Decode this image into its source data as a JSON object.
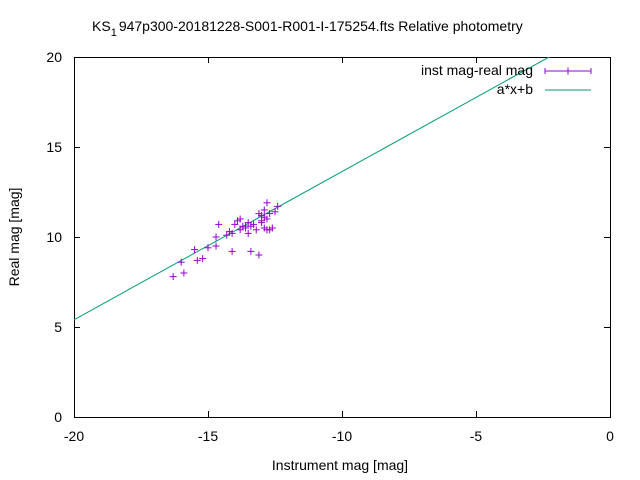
{
  "chart_data": {
    "type": "scatter",
    "title": {
      "prefix": "KS",
      "subscript": "1",
      "suffix": "947p300-20181228-S001-R001-I-175254.fts Relative photometry"
    },
    "xlabel": "Instrument mag [mag]",
    "ylabel": "Real mag [mag]",
    "xlim": [
      -20,
      0
    ],
    "ylim": [
      0,
      20
    ],
    "x_ticks": [
      -20,
      -15,
      -10,
      -5,
      0
    ],
    "x_tick_labels": [
      "-20",
      "-15",
      "-10",
      "-5",
      "0"
    ],
    "y_ticks": [
      0,
      5,
      10,
      15,
      20
    ],
    "y_tick_labels": [
      "0",
      "5",
      "10",
      "15",
      "20"
    ],
    "grid": false,
    "legend_position": "top-right",
    "series": [
      {
        "name": "inst mag-real mag",
        "kind": "points",
        "marker": "plus",
        "color": "#9400d3",
        "points": [
          [
            -16.3,
            7.8
          ],
          [
            -16.0,
            8.6
          ],
          [
            -15.9,
            8.0
          ],
          [
            -15.5,
            9.3
          ],
          [
            -15.4,
            8.7
          ],
          [
            -15.2,
            8.8
          ],
          [
            -15.0,
            9.4
          ],
          [
            -14.7,
            9.5
          ],
          [
            -14.7,
            10.0
          ],
          [
            -14.6,
            10.7
          ],
          [
            -14.3,
            10.1
          ],
          [
            -14.2,
            10.3
          ],
          [
            -14.1,
            9.2
          ],
          [
            -14.1,
            10.2
          ],
          [
            -14.0,
            10.7
          ],
          [
            -13.9,
            10.9
          ],
          [
            -13.8,
            10.4
          ],
          [
            -13.8,
            11.0
          ],
          [
            -13.7,
            10.6
          ],
          [
            -13.6,
            10.5
          ],
          [
            -13.5,
            10.8
          ],
          [
            -13.5,
            10.2
          ],
          [
            -13.4,
            10.6
          ],
          [
            -13.4,
            9.2
          ],
          [
            -13.3,
            10.7
          ],
          [
            -13.2,
            10.4
          ],
          [
            -13.1,
            11.3
          ],
          [
            -13.1,
            9.0
          ],
          [
            -13.0,
            10.9
          ],
          [
            -13.0,
            11.2
          ],
          [
            -12.9,
            10.5
          ],
          [
            -12.9,
            11.5
          ],
          [
            -12.8,
            11.9
          ],
          [
            -12.8,
            10.4
          ],
          [
            -12.8,
            11.0
          ],
          [
            -12.7,
            10.4
          ],
          [
            -12.7,
            11.3
          ],
          [
            -12.6,
            10.5
          ],
          [
            -12.5,
            11.4
          ],
          [
            -12.4,
            11.7
          ],
          [
            -12.9,
            11.1
          ],
          [
            -13.0,
            10.8
          ],
          [
            -13.6,
            10.6
          ]
        ]
      },
      {
        "name": "a*x+b",
        "kind": "line",
        "color": "#009e73",
        "slope": 0.8235,
        "intercept": 21.87
      }
    ]
  }
}
